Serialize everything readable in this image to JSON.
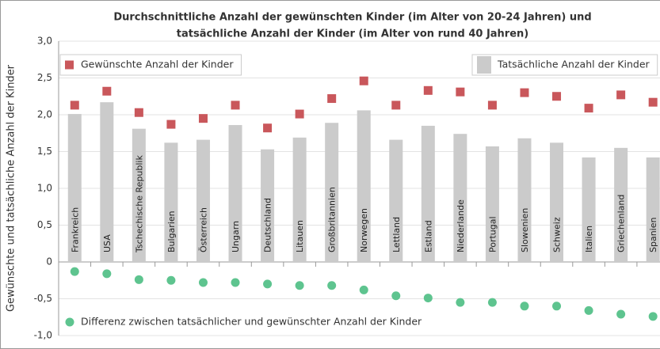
{
  "chart_data": {
    "type": "bar",
    "title_lines": [
      "Durchschnittliche Anzahl der gewünschten Kinder (im Alter von 20-24 Jahren) und",
      "tatsächliche Anzahl der Kinder (im Alter von rund 40 Jahren)"
    ],
    "ylabel": "Gewünschte und tatsächliche Anzahl der Kinder",
    "categories": [
      "Frankreich",
      "USA",
      "Tschechische Republik",
      "Bulgarien",
      "Österreich",
      "Ungarn",
      "Deutschland",
      "Litauen",
      "Großbritannien",
      "Norwegen",
      "Lettland",
      "Estland",
      "Niederlande",
      "Portugal",
      "Slowenien",
      "Schweiz",
      "Italien",
      "Griechenland",
      "Spanien"
    ],
    "series": [
      {
        "name": "Gewünschte Anzahl der Kinder",
        "marker": "square",
        "color": "#c9575b",
        "legend": "top-left",
        "values": [
          2.13,
          2.32,
          2.03,
          1.87,
          1.95,
          2.13,
          1.82,
          2.01,
          2.22,
          2.46,
          2.13,
          2.33,
          2.31,
          2.13,
          2.3,
          2.25,
          2.09,
          2.27,
          2.17
        ]
      },
      {
        "name": "Tatsächliche Anzahl der Kinder",
        "marker": "bar",
        "color": "#cbcbcb",
        "legend": "top-right",
        "values": [
          2.01,
          2.17,
          1.81,
          1.62,
          1.66,
          1.86,
          1.53,
          1.69,
          1.89,
          2.06,
          1.66,
          1.85,
          1.74,
          1.57,
          1.68,
          1.62,
          1.42,
          1.55,
          1.42
        ]
      },
      {
        "name": "Differenz zwischen tatsächlicher und gewünschter Anzahl der Kinder",
        "marker": "circle",
        "color": "#5ec48f",
        "legend": "bottom-left",
        "values": [
          -0.13,
          -0.16,
          -0.24,
          -0.25,
          -0.28,
          -0.28,
          -0.3,
          -0.32,
          -0.32,
          -0.38,
          -0.46,
          -0.49,
          -0.55,
          -0.55,
          -0.6,
          -0.6,
          -0.66,
          -0.71,
          -0.74
        ]
      }
    ],
    "ylim": [
      -1,
      3
    ],
    "yticks": [
      {
        "value": -1,
        "label": "-1,0"
      },
      {
        "value": -0.5,
        "label": "-0,5"
      },
      0,
      {
        "value": 0.5,
        "label": "0,5"
      },
      {
        "value": 1,
        "label": "1,0"
      },
      {
        "value": 1.5,
        "label": "1,5"
      },
      {
        "value": 2,
        "label": "2,0"
      },
      {
        "value": 2.5,
        "label": "2,5"
      },
      {
        "value": 3,
        "label": "3,0"
      }
    ],
    "grid": true
  }
}
